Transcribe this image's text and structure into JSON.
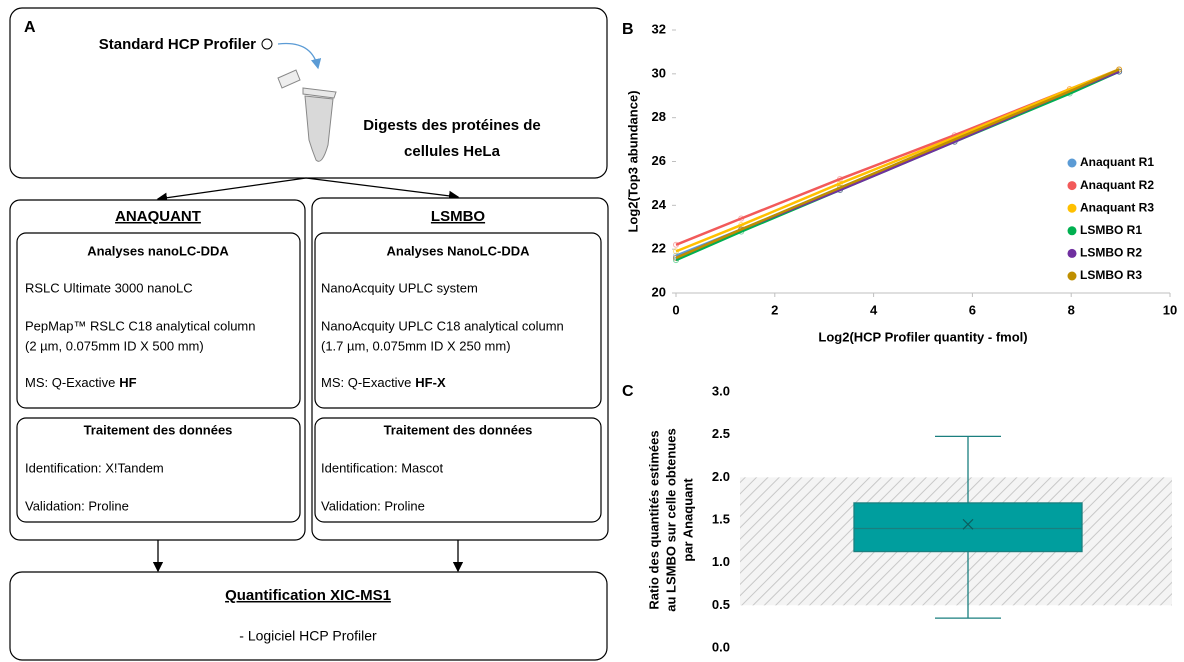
{
  "diagram": {
    "panel_label": "A",
    "input": "Standard HCP Profiler",
    "sample": [
      "Digests des protéines de",
      "cellules HeLa"
    ],
    "labs": [
      {
        "name": "ANAQUANT",
        "acquisition": {
          "title": "Analyses nanoLC-DDA",
          "lines": [
            "RSLC Ultimate 3000 nanoLC",
            "PepMap™ RSLC C18 analytical column",
            "(2 µm, 0.075mm ID X 500 mm)"
          ],
          "ms_label": "MS: Q-Exactive",
          "ms_instrument": "HF"
        },
        "processing": {
          "title": "Traitement des données",
          "identification": "Identification: X!Tandem",
          "validation": "Validation: Proline"
        }
      },
      {
        "name": "LSMBO",
        "acquisition": {
          "title": "Analyses NanoLC-DDA",
          "lines": [
            "NanoAcquity UPLC system",
            "NanoAcquity UPLC C18 analytical column",
            "(1.7 µm, 0.075mm ID X 250 mm)"
          ],
          "ms_label": "MS: Q-Exactive",
          "ms_instrument": "HF-X"
        },
        "processing": {
          "title": "Traitement des données",
          "identification": "Identification: Mascot",
          "validation": "Validation: Proline"
        }
      }
    ],
    "output": {
      "title": "Quantification XIC-MS1",
      "detail": "- Logiciel HCP Profiler"
    }
  },
  "chart_data": [
    {
      "type": "scatter",
      "panel_label": "B",
      "x_label": "Log2(HCP Profiler quantity - fmol)",
      "y_label": "Log2(Top3 abundance)",
      "x": [
        0,
        1.32,
        3.32,
        5.64,
        7.97,
        8.97
      ],
      "series": [
        {
          "name": "Anaquant R1",
          "color": "#5b9bd5",
          "values": [
            21.7,
            22.9,
            24.8,
            27.0,
            29.2,
            30.1
          ]
        },
        {
          "name": "Anaquant R2",
          "color": "#f25a5a",
          "values": [
            22.2,
            23.4,
            25.2,
            27.2,
            29.3,
            30.2
          ]
        },
        {
          "name": "Anaquant R3",
          "color": "#ffc000",
          "values": [
            21.9,
            23.1,
            25.0,
            27.1,
            29.3,
            30.2
          ]
        },
        {
          "name": "LSMBO R1",
          "color": "#00b050",
          "values": [
            21.5,
            22.8,
            24.7,
            26.9,
            29.1,
            30.1
          ]
        },
        {
          "name": "LSMBO R2",
          "color": "#7030a0",
          "values": [
            21.6,
            22.9,
            24.7,
            26.9,
            29.2,
            30.1
          ]
        },
        {
          "name": "LSMBO R3",
          "color": "#bf8f00",
          "values": [
            21.6,
            22.9,
            24.8,
            27.0,
            29.2,
            30.2
          ]
        }
      ],
      "xlim": [
        0,
        10
      ],
      "xticks": [
        0,
        2,
        4,
        6,
        8,
        10
      ],
      "ylim": [
        20,
        32
      ],
      "yticks": [
        20,
        22,
        24,
        26,
        28,
        30,
        32
      ],
      "legend": "right"
    },
    {
      "type": "box",
      "panel_label": "C",
      "y_label": [
        "Ratio des quantités estimées",
        "au LSMBO sur celle obtenues",
        "par Anaquant"
      ],
      "min": 0.35,
      "q1": 1.13,
      "median": 1.4,
      "q3": 1.7,
      "max": 2.48,
      "mean": 1.45,
      "color": "#009e9e",
      "shaded_range": [
        0.5,
        2
      ],
      "ylim": [
        0,
        3
      ],
      "yticks": [
        {
          "value": 0,
          "label": "0.0"
        },
        0.5,
        {
          "value": 1,
          "label": "1.0"
        },
        1.5,
        {
          "value": 2,
          "label": "2.0"
        },
        2.5,
        {
          "value": 3,
          "label": "3.0"
        }
      ]
    }
  ]
}
